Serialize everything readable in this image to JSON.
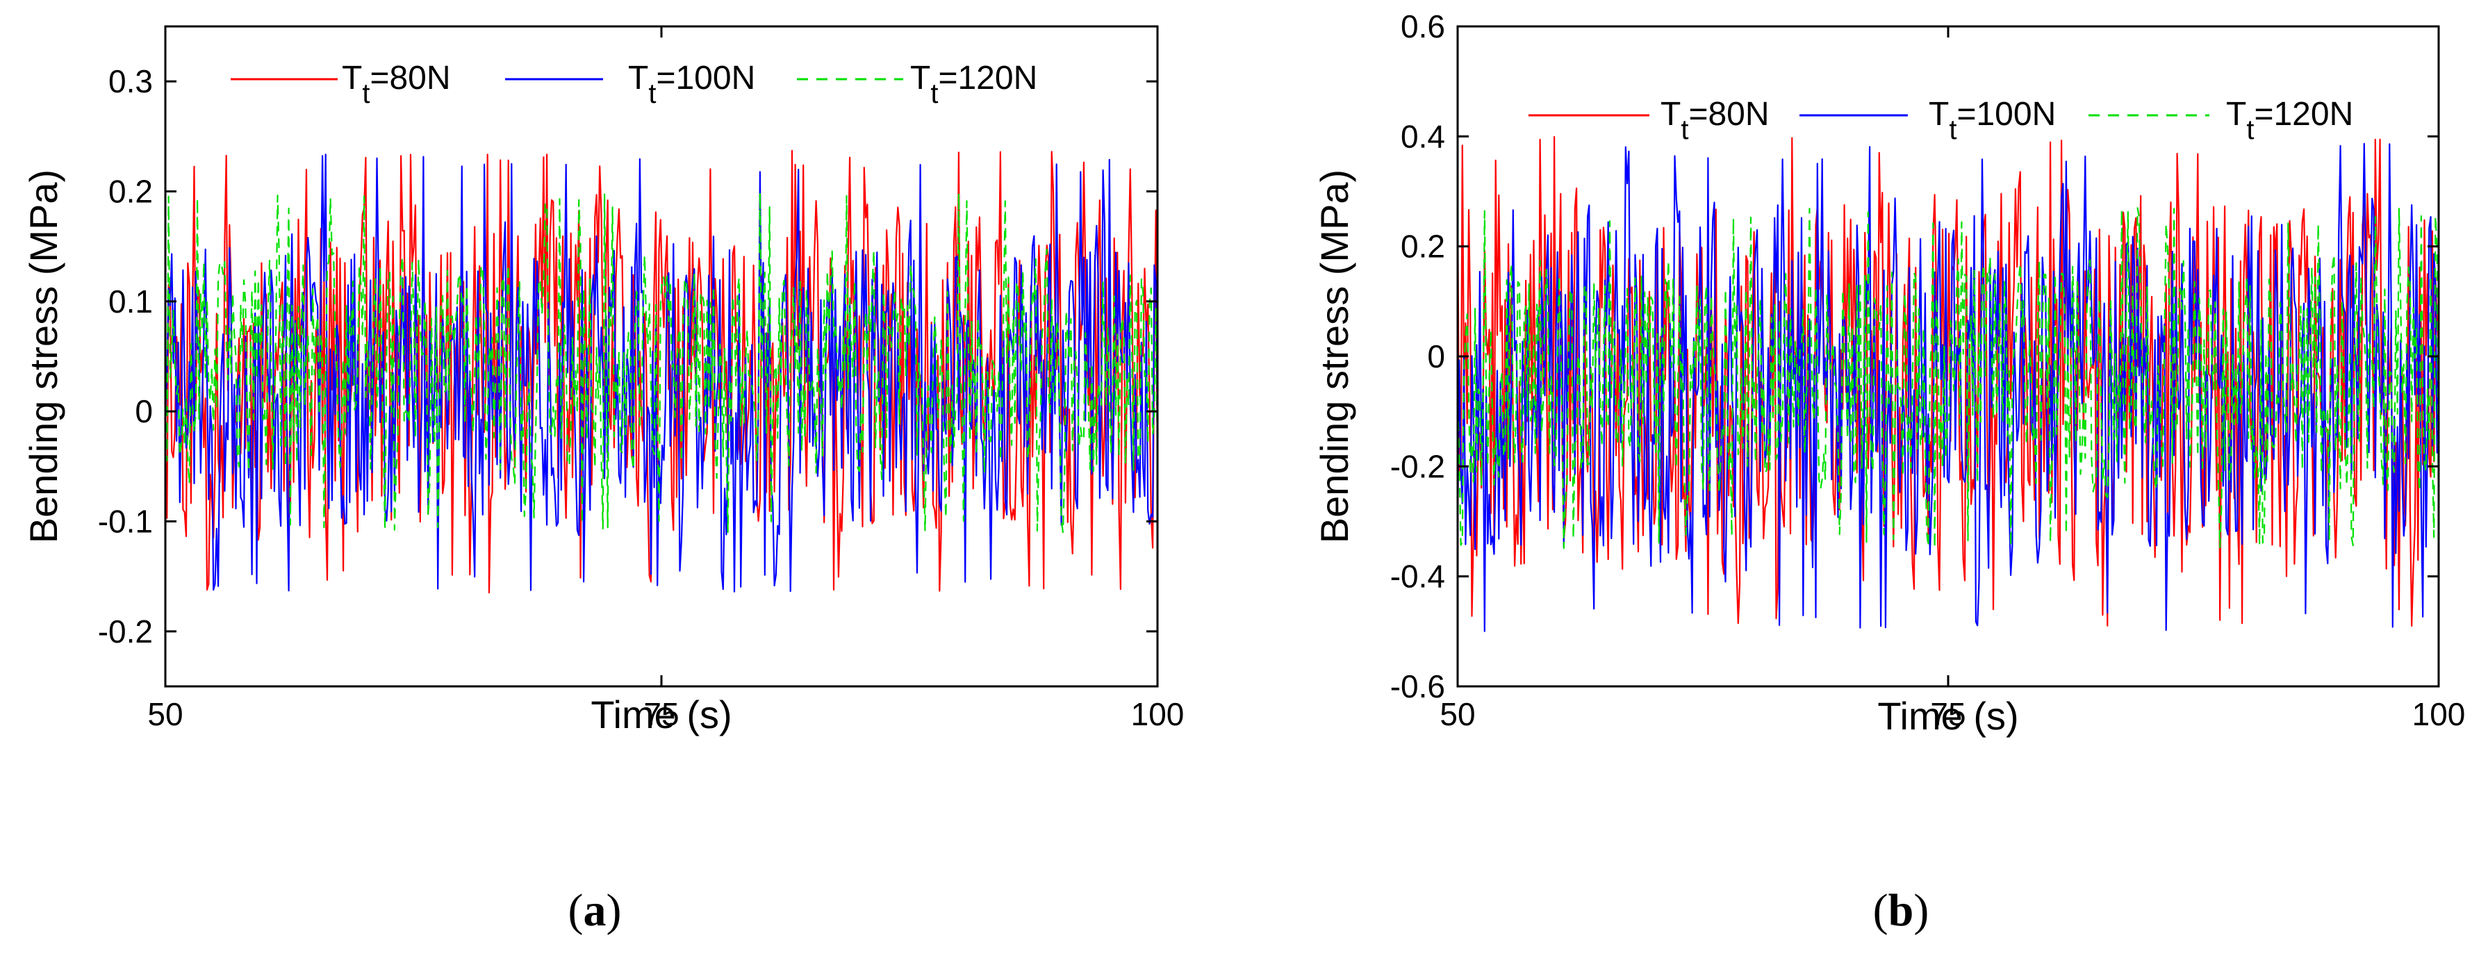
{
  "figure": {
    "panels": [
      {
        "caption_open": "(",
        "caption_letter": "a",
        "caption_close": ")"
      },
      {
        "caption_open": "(",
        "caption_letter": "b",
        "caption_close": ")"
      }
    ]
  },
  "chart_data": [
    {
      "type": "line",
      "title": "",
      "xlabel": "Time (s)",
      "ylabel": "Bending stress (MPa)",
      "xlim": [
        50,
        100
      ],
      "ylim": [
        -0.25,
        0.35
      ],
      "xticks": [
        50,
        75,
        100
      ],
      "xtick_labels": [
        "50",
        "75",
        "100"
      ],
      "yticks": [
        -0.2,
        -0.1,
        0,
        0.1,
        0.2,
        0.3
      ],
      "ytick_labels": [
        "-0.2",
        "-0.1",
        "0",
        "0.1",
        "0.2",
        "0.3"
      ],
      "grid": false,
      "legend_position": "top",
      "series": [
        {
          "name": "T_t=80N",
          "legend_main": "T",
          "legend_sub": "t",
          "legend_rest": "=80N",
          "color": "#ff0000",
          "dash": "solid",
          "center": 0.035,
          "amplitude": 0.18,
          "min": -0.165,
          "max": 0.24,
          "samples": 620,
          "seed": 11
        },
        {
          "name": "T_t=100N",
          "legend_main": "T",
          "legend_sub": "t",
          "legend_rest": "=100N",
          "color": "#0000ff",
          "dash": "solid",
          "center": 0.03,
          "amplitude": 0.16,
          "min": -0.165,
          "max": 0.235,
          "samples": 620,
          "seed": 23
        },
        {
          "name": "T_t=120N",
          "legend_main": "T",
          "legend_sub": "t",
          "legend_rest": "=120N",
          "color": "#00e000",
          "dash": "dashed",
          "center": 0.04,
          "amplitude": 0.12,
          "min": -0.11,
          "max": 0.2,
          "samples": 620,
          "seed": 37
        }
      ]
    },
    {
      "type": "line",
      "title": "",
      "xlabel": "Time (s)",
      "ylabel": "Bending stress (MPa)",
      "xlim": [
        50,
        100
      ],
      "ylim": [
        -0.6,
        0.6
      ],
      "xticks": [
        50,
        75,
        100
      ],
      "xtick_labels": [
        "50",
        "75",
        "100"
      ],
      "yticks": [
        -0.6,
        -0.4,
        -0.2,
        0,
        0.2,
        0.4,
        0.6
      ],
      "ytick_labels": [
        "-0.6",
        "-0.4",
        "-0.2",
        "0",
        "0.2",
        "0.4",
        "0.6"
      ],
      "grid": false,
      "legend_position": "top",
      "series": [
        {
          "name": "T_t=80N",
          "legend_main": "T",
          "legend_sub": "t",
          "legend_rest": "=80N",
          "color": "#ff0000",
          "dash": "solid",
          "center": -0.05,
          "amplitude": 0.42,
          "min": -0.5,
          "max": 0.4,
          "samples": 620,
          "seed": 41
        },
        {
          "name": "T_t=100N",
          "legend_main": "T",
          "legend_sub": "t",
          "legend_rest": "=100N",
          "color": "#0000ff",
          "dash": "solid",
          "center": -0.05,
          "amplitude": 0.4,
          "min": -0.5,
          "max": 0.39,
          "samples": 620,
          "seed": 53
        },
        {
          "name": "T_t=120N",
          "legend_main": "T",
          "legend_sub": "t",
          "legend_rest": "=120N",
          "color": "#00e000",
          "dash": "dashed",
          "center": -0.03,
          "amplitude": 0.25,
          "min": -0.35,
          "max": 0.27,
          "samples": 620,
          "seed": 67
        }
      ]
    }
  ]
}
